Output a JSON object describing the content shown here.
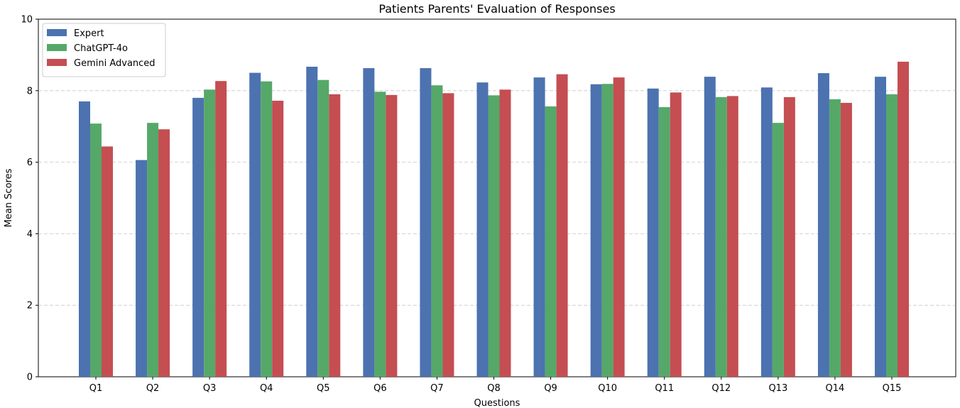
{
  "chart_data": {
    "type": "bar",
    "title": "Patients Parents' Evaluation of Responses",
    "xlabel": "Questions",
    "ylabel": "Mean Scores",
    "ylim": [
      0,
      10
    ],
    "yticks": [
      0,
      2,
      4,
      6,
      8,
      10
    ],
    "grid": "y-dashed",
    "legend_position": "top-left",
    "categories": [
      "Q1",
      "Q2",
      "Q3",
      "Q4",
      "Q5",
      "Q6",
      "Q7",
      "Q8",
      "Q9",
      "Q10",
      "Q11",
      "Q12",
      "Q13",
      "Q14",
      "Q15"
    ],
    "series": [
      {
        "name": "Expert",
        "color": "#4c72b0",
        "values": [
          7.7,
          6.06,
          7.8,
          8.5,
          8.67,
          8.63,
          8.63,
          8.23,
          8.37,
          8.18,
          8.06,
          8.39,
          8.09,
          8.49,
          8.39
        ]
      },
      {
        "name": "ChatGPT-4o",
        "color": "#55a868",
        "values": [
          7.08,
          7.1,
          8.03,
          8.26,
          8.3,
          7.97,
          8.15,
          7.87,
          7.56,
          8.19,
          7.54,
          7.82,
          7.1,
          7.76,
          7.9
        ]
      },
      {
        "name": "Gemini Advanced",
        "color": "#c44e52",
        "values": [
          6.44,
          6.92,
          8.27,
          7.72,
          7.9,
          7.88,
          7.93,
          8.03,
          8.46,
          8.37,
          7.95,
          7.85,
          7.82,
          7.66,
          8.81
        ]
      }
    ]
  }
}
